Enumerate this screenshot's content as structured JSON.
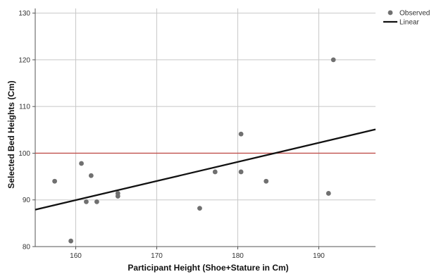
{
  "chart_data": {
    "type": "scatter",
    "xlabel": "Participant Height (Shoe+Stature in Cm)",
    "ylabel": "Selected Bed Heights (Cm)",
    "xlim": [
      155,
      197
    ],
    "ylim": [
      80,
      131
    ],
    "x_ticks": [
      160,
      170,
      180,
      190
    ],
    "y_ticks": [
      80,
      90,
      100,
      110,
      120,
      130
    ],
    "grid": true,
    "legend_position": "top-right",
    "series": [
      {
        "name": "Observed",
        "kind": "points",
        "color": "#707070",
        "points": [
          {
            "x": 157.4,
            "y": 94.0
          },
          {
            "x": 159.4,
            "y": 81.2
          },
          {
            "x": 160.7,
            "y": 97.8
          },
          {
            "x": 161.3,
            "y": 89.6
          },
          {
            "x": 161.9,
            "y": 95.2
          },
          {
            "x": 162.6,
            "y": 89.6
          },
          {
            "x": 165.2,
            "y": 91.4
          },
          {
            "x": 165.2,
            "y": 90.8
          },
          {
            "x": 175.3,
            "y": 88.2
          },
          {
            "x": 177.2,
            "y": 96.0
          },
          {
            "x": 180.4,
            "y": 104.1
          },
          {
            "x": 180.4,
            "y": 96.0
          },
          {
            "x": 183.5,
            "y": 94.0
          },
          {
            "x": 191.2,
            "y": 91.4
          },
          {
            "x": 191.8,
            "y": 120.0
          }
        ]
      },
      {
        "name": "Linear",
        "kind": "line",
        "color": "#111111",
        "points": [
          {
            "x": 155,
            "y": 87.9
          },
          {
            "x": 197,
            "y": 105.1
          }
        ]
      }
    ],
    "reference_lines": [
      {
        "axis": "y",
        "value": 100,
        "color": "#c0504d"
      }
    ]
  }
}
